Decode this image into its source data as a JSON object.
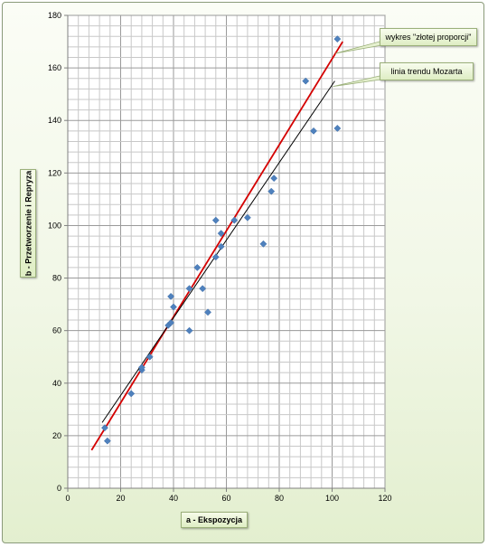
{
  "chart_data": {
    "type": "scatter",
    "title": "",
    "xlabel": "a   -   Ekspozycja",
    "ylabel": "b   -   Przetworzenie i Repryza",
    "xlim": [
      0,
      120
    ],
    "ylim": [
      0,
      180
    ],
    "x_ticks": [
      0,
      20,
      40,
      60,
      80,
      100,
      120
    ],
    "y_ticks": [
      0,
      20,
      40,
      60,
      80,
      100,
      120,
      140,
      160,
      180
    ],
    "grid": true,
    "marker_color": "#4f81bd",
    "points": [
      {
        "x": 14,
        "y": 23
      },
      {
        "x": 15,
        "y": 18
      },
      {
        "x": 24,
        "y": 36
      },
      {
        "x": 28,
        "y": 45
      },
      {
        "x": 28,
        "y": 46
      },
      {
        "x": 31,
        "y": 50
      },
      {
        "x": 38,
        "y": 62
      },
      {
        "x": 39,
        "y": 63
      },
      {
        "x": 39,
        "y": 73
      },
      {
        "x": 40,
        "y": 69
      },
      {
        "x": 46,
        "y": 60
      },
      {
        "x": 46,
        "y": 76
      },
      {
        "x": 49,
        "y": 84
      },
      {
        "x": 51,
        "y": 76
      },
      {
        "x": 53,
        "y": 67
      },
      {
        "x": 56,
        "y": 88
      },
      {
        "x": 56,
        "y": 102
      },
      {
        "x": 58,
        "y": 92
      },
      {
        "x": 58,
        "y": 97
      },
      {
        "x": 63,
        "y": 102
      },
      {
        "x": 68,
        "y": 103
      },
      {
        "x": 74,
        "y": 93
      },
      {
        "x": 77,
        "y": 113
      },
      {
        "x": 78,
        "y": 118
      },
      {
        "x": 90,
        "y": 155
      },
      {
        "x": 93,
        "y": 136
      },
      {
        "x": 102,
        "y": 137
      },
      {
        "x": 102,
        "y": 171
      }
    ],
    "lines": [
      {
        "name": "wykres \"złotej proporcji\"",
        "color": "#d40000",
        "x": [
          9,
          104
        ],
        "y": [
          14.5,
          170
        ]
      },
      {
        "name": "linia trendu Mozarta",
        "color": "#000000",
        "x": [
          13,
          101
        ],
        "y": [
          25,
          155
        ]
      }
    ]
  },
  "callouts": {
    "golden": "wykres \"złotej proporcji\"",
    "mozart": "linia trendu Mozarta"
  }
}
